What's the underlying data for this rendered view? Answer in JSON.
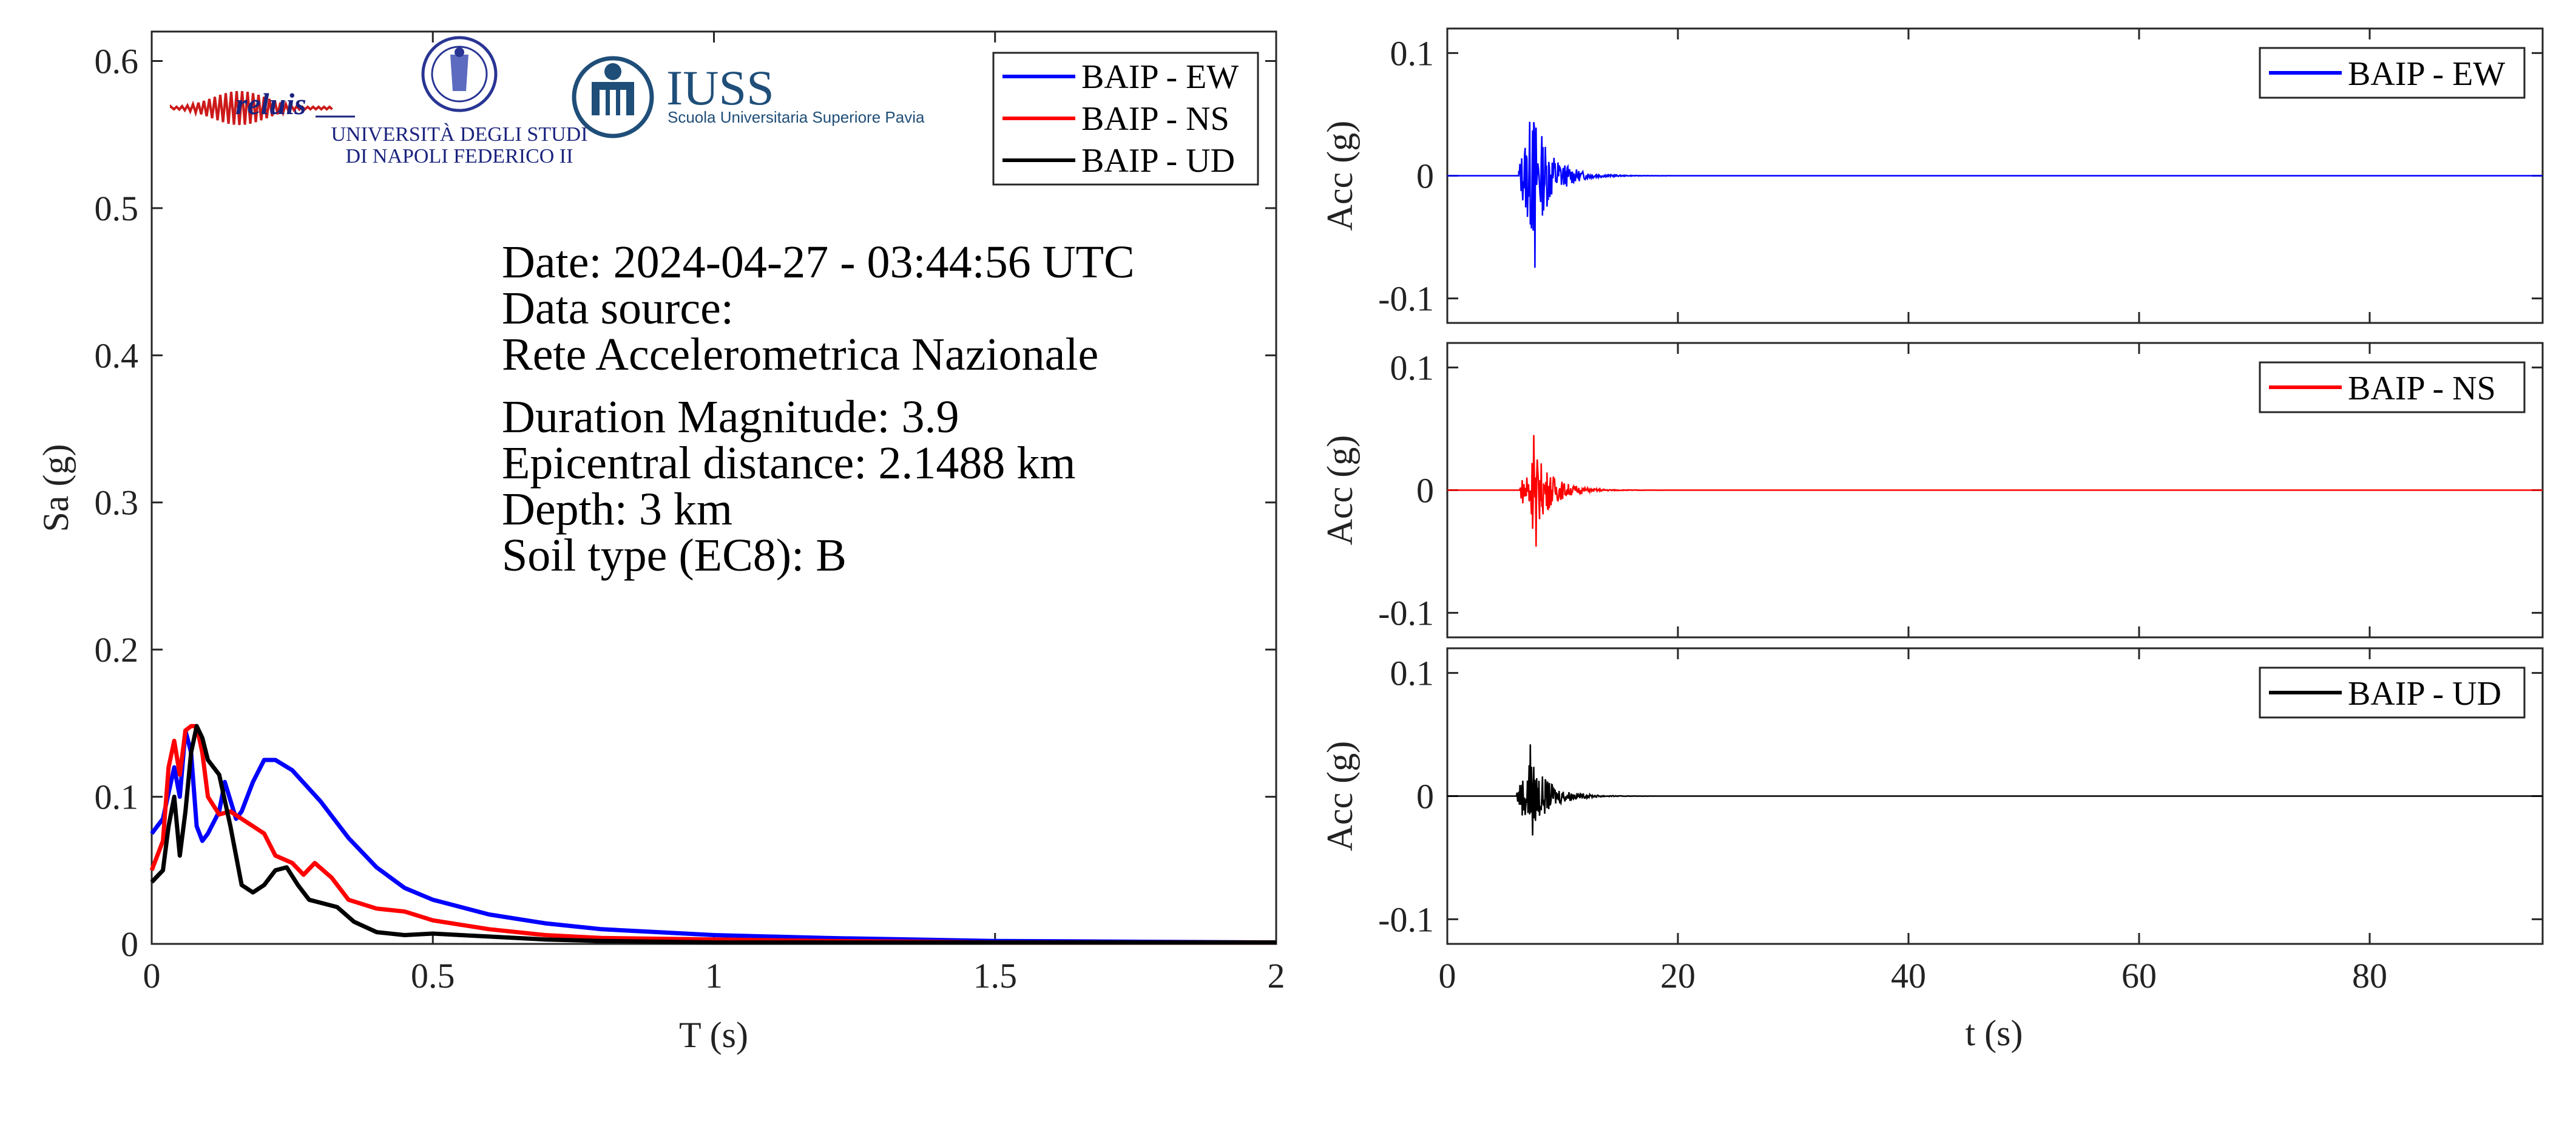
{
  "logos": {
    "reluis": "reluis",
    "unina_line1": "UNIVERSITÀ DEGLI STUDI",
    "unina_line2": "DI NAPOLI FEDERICO II",
    "iuss": "IUSS",
    "iuss_sub": "Scuola Universitaria Superiore Pavia"
  },
  "info": {
    "date": "Date: 2024-04-27 - 03:44:56 UTC",
    "source_label": "Data source:",
    "source": "Rete Accelerometrica Nazionale",
    "magnitude": "Duration Magnitude: 3.9",
    "distance": "Epicentral distance: 2.1488 km",
    "depth": "Depth: 3 km",
    "soil": "Soil type (EC8): B"
  },
  "colors": {
    "ew": "#0000ff",
    "ns": "#ff0000",
    "ud": "#000000"
  },
  "chart_data": [
    {
      "type": "line",
      "xlabel": "T (s)",
      "ylabel": "Sa (g)",
      "xlim": [
        0,
        2
      ],
      "ylim": [
        0,
        0.62
      ],
      "xticks": [
        0,
        0.5,
        1,
        1.5,
        2
      ],
      "xtick_labels": [
        "0",
        "0.5",
        "1",
        "1.5",
        "2"
      ],
      "yticks": [
        0,
        0.1,
        0.2,
        0.3,
        0.4,
        0.5,
        0.6
      ],
      "ytick_labels": [
        "0",
        "0.1",
        "0.2",
        "0.3",
        "0.4",
        "0.5",
        "0.6"
      ],
      "legend": "top-right",
      "series": [
        {
          "name": "BAIP - EW",
          "color": "#0000ff",
          "x": [
            0,
            0.02,
            0.04,
            0.05,
            0.06,
            0.07,
            0.08,
            0.09,
            0.1,
            0.12,
            0.13,
            0.15,
            0.16,
            0.18,
            0.2,
            0.22,
            0.25,
            0.3,
            0.35,
            0.4,
            0.45,
            0.5,
            0.6,
            0.7,
            0.8,
            1.0,
            1.2,
            1.5,
            2.0
          ],
          "y": [
            0.075,
            0.085,
            0.12,
            0.1,
            0.145,
            0.13,
            0.08,
            0.07,
            0.075,
            0.09,
            0.11,
            0.085,
            0.09,
            0.11,
            0.125,
            0.125,
            0.118,
            0.097,
            0.072,
            0.052,
            0.038,
            0.03,
            0.02,
            0.014,
            0.01,
            0.006,
            0.004,
            0.002,
            0.001
          ]
        },
        {
          "name": "BAIP - NS",
          "color": "#ff0000",
          "x": [
            0,
            0.02,
            0.03,
            0.04,
            0.05,
            0.06,
            0.07,
            0.08,
            0.09,
            0.1,
            0.12,
            0.14,
            0.16,
            0.18,
            0.2,
            0.22,
            0.25,
            0.27,
            0.29,
            0.32,
            0.35,
            0.4,
            0.45,
            0.5,
            0.6,
            0.7,
            0.8,
            1.0,
            1.2,
            1.5,
            2.0
          ],
          "y": [
            0.05,
            0.07,
            0.12,
            0.138,
            0.115,
            0.145,
            0.148,
            0.148,
            0.13,
            0.1,
            0.088,
            0.09,
            0.085,
            0.08,
            0.075,
            0.06,
            0.055,
            0.047,
            0.055,
            0.045,
            0.03,
            0.024,
            0.022,
            0.016,
            0.01,
            0.006,
            0.004,
            0.003,
            0.002,
            0.001,
            0.001
          ]
        },
        {
          "name": "BAIP - UD",
          "color": "#000000",
          "x": [
            0,
            0.02,
            0.03,
            0.04,
            0.05,
            0.06,
            0.07,
            0.08,
            0.09,
            0.1,
            0.12,
            0.14,
            0.16,
            0.18,
            0.2,
            0.22,
            0.24,
            0.26,
            0.28,
            0.3,
            0.33,
            0.36,
            0.4,
            0.45,
            0.5,
            0.55,
            0.6,
            0.7,
            0.8,
            1.0,
            1.5,
            2.0
          ],
          "y": [
            0.042,
            0.05,
            0.08,
            0.1,
            0.06,
            0.09,
            0.13,
            0.148,
            0.14,
            0.125,
            0.115,
            0.08,
            0.04,
            0.035,
            0.04,
            0.05,
            0.052,
            0.04,
            0.03,
            0.028,
            0.025,
            0.015,
            0.008,
            0.006,
            0.007,
            0.006,
            0.005,
            0.003,
            0.002,
            0.001,
            0.001,
            0.001
          ]
        }
      ]
    },
    {
      "type": "line",
      "xlabel": "",
      "ylabel": "Acc (g)",
      "xlim": [
        0,
        95
      ],
      "ylim": [
        -0.12,
        0.12
      ],
      "yticks": [
        -0.1,
        0,
        0.1
      ],
      "ytick_labels": [
        "-0.1",
        "0",
        "0.1"
      ],
      "legend": "top-right",
      "series": [
        {
          "name": "BAIP - EW",
          "color": "#0000ff",
          "onset_s": 6.2,
          "peak_time_s": 7.4,
          "pga_pos": 0.037,
          "pga_neg": -0.075,
          "decay_end_s": 14
        }
      ]
    },
    {
      "type": "line",
      "xlabel": "",
      "ylabel": "Acc (g)",
      "xlim": [
        0,
        95
      ],
      "ylim": [
        -0.12,
        0.12
      ],
      "yticks": [
        -0.1,
        0,
        0.1
      ],
      "ytick_labels": [
        "-0.1",
        "0",
        "0.1"
      ],
      "legend": "top-right",
      "series": [
        {
          "name": "BAIP - NS",
          "color": "#ff0000",
          "onset_s": 6.3,
          "peak_time_s": 7.5,
          "pga_pos": 0.045,
          "pga_neg": -0.046,
          "decay_end_s": 15
        }
      ]
    },
    {
      "type": "line",
      "xlabel": "t (s)",
      "ylabel": "Acc (g)",
      "xlim": [
        0,
        95
      ],
      "ylim": [
        -0.12,
        0.12
      ],
      "xticks": [
        0,
        20,
        40,
        60,
        80
      ],
      "xtick_labels": [
        "0",
        "20",
        "40",
        "60",
        "80"
      ],
      "yticks": [
        -0.1,
        0,
        0.1
      ],
      "ytick_labels": [
        "-0.1",
        "0",
        "0.1"
      ],
      "legend": "top-right",
      "series": [
        {
          "name": "BAIP - UD",
          "color": "#000000",
          "onset_s": 6.0,
          "peak_time_s": 7.2,
          "pga_pos": 0.042,
          "pga_neg": -0.032,
          "decay_end_s": 13
        }
      ]
    }
  ]
}
